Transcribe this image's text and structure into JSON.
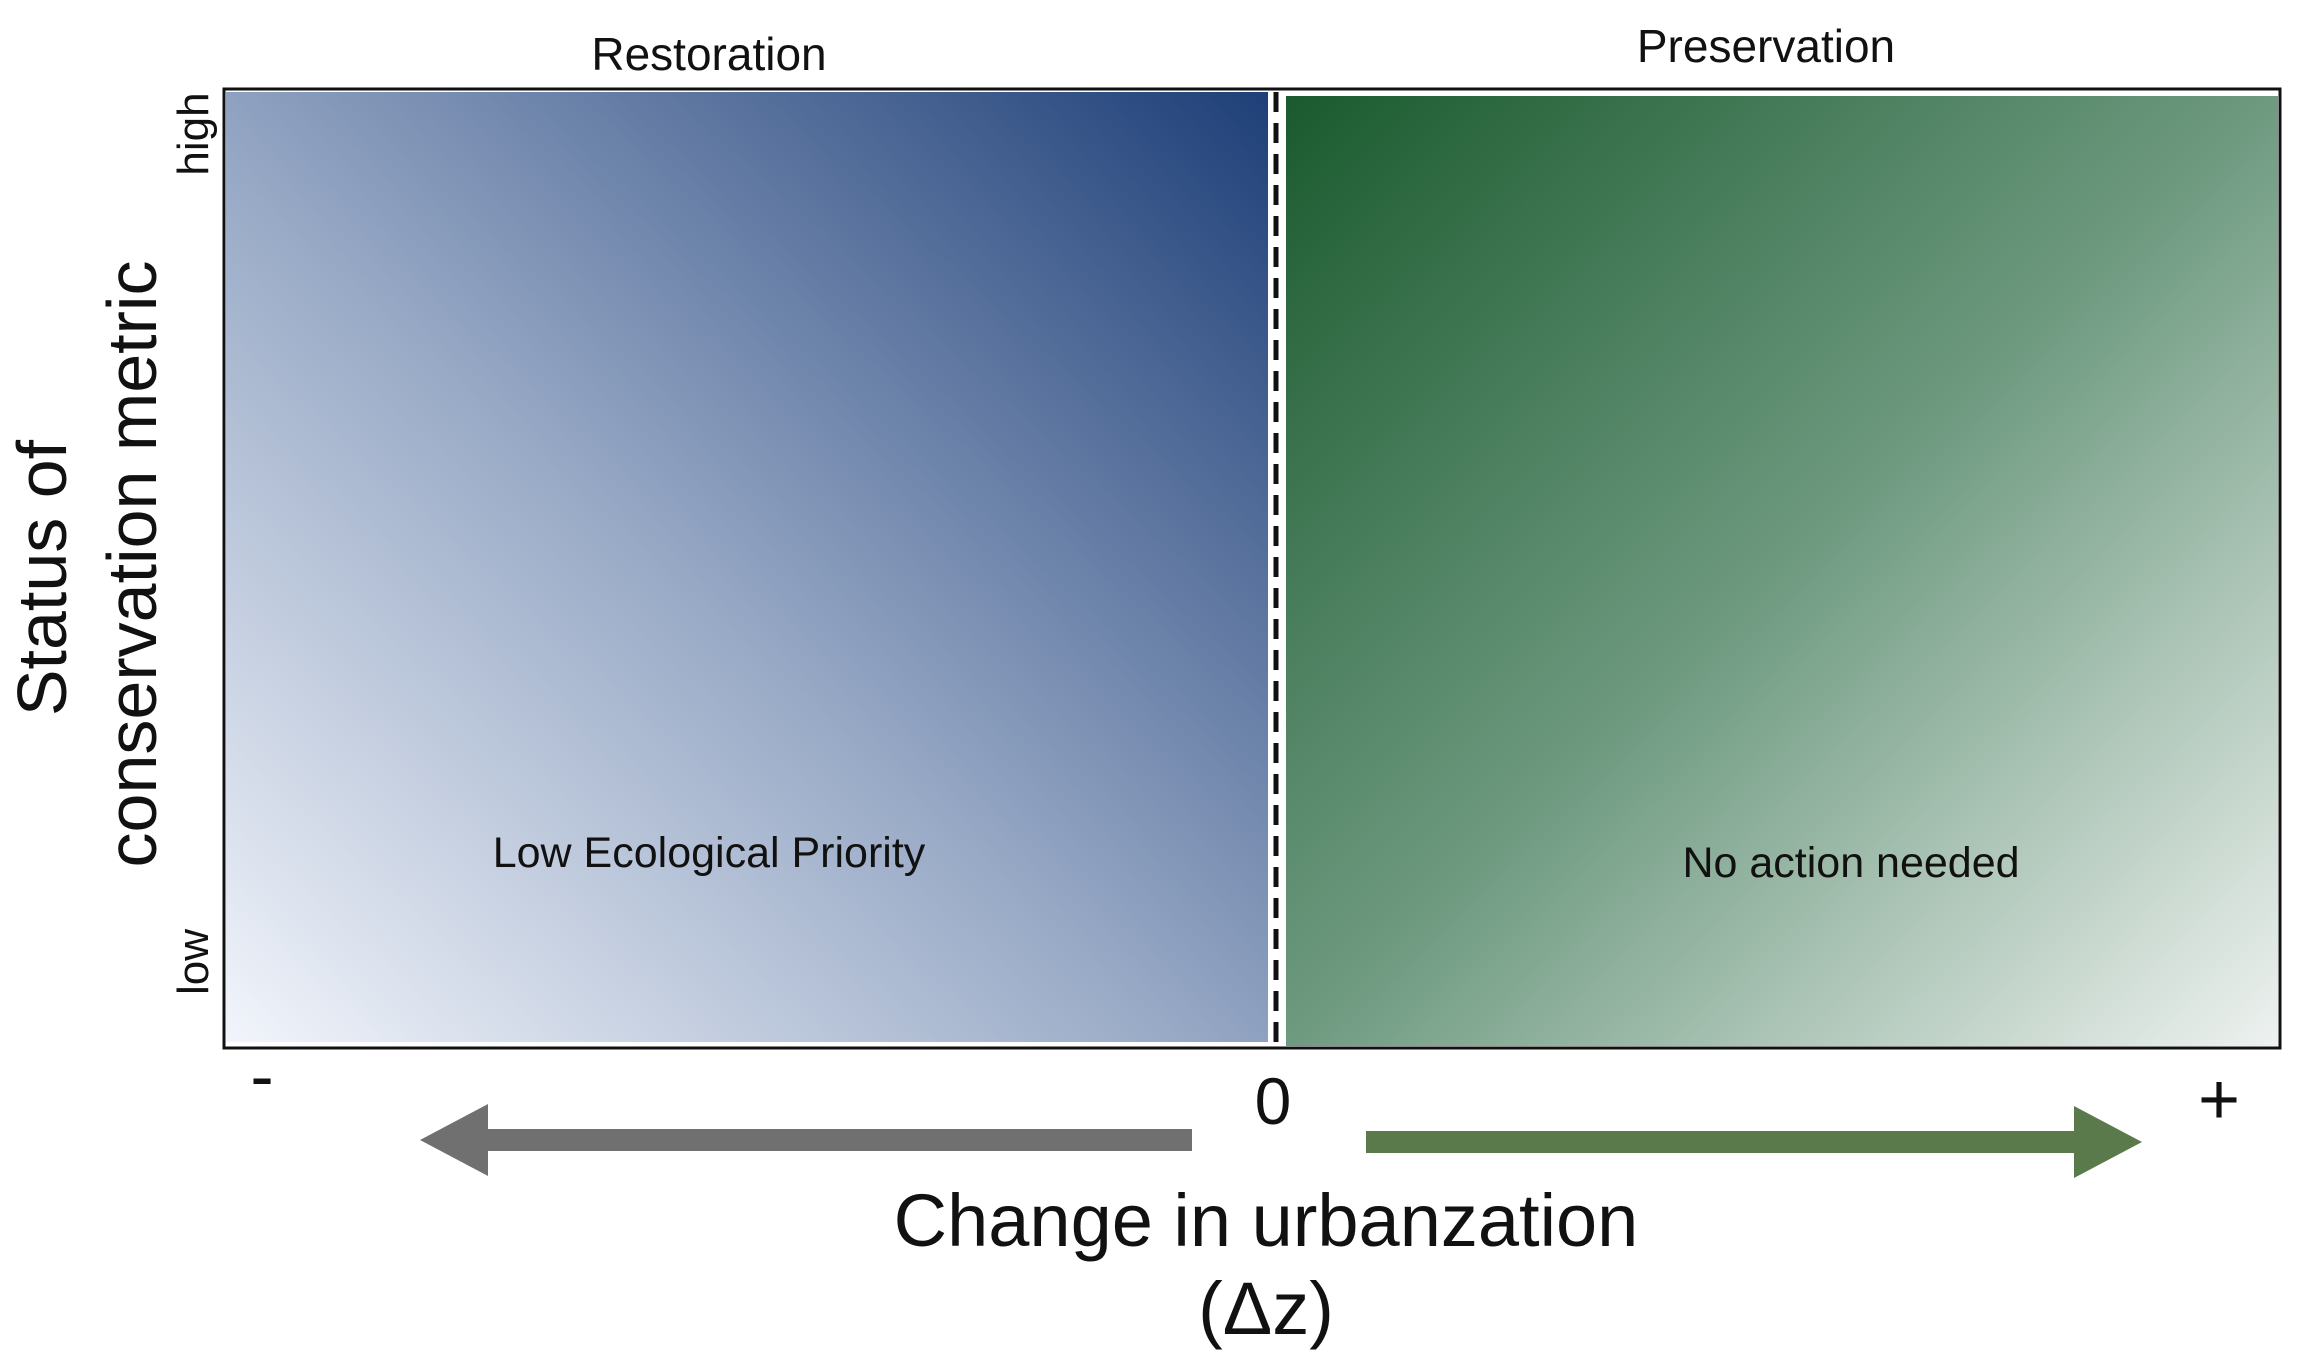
{
  "quadrants": {
    "restoration": {
      "heading": "Restoration",
      "note": "Low Ecological Priority"
    },
    "preservation": {
      "heading": "Preservation",
      "note": "No action needed"
    }
  },
  "y_axis": {
    "title_line1": "Status of",
    "title_line2": "conservation metric",
    "high": "high",
    "low": "low"
  },
  "x_axis": {
    "minus": "-",
    "zero": "0",
    "plus": "+",
    "title_line1": "Change in urbanzation",
    "title_line2": "(Δz)"
  },
  "colors": {
    "restoration_dark": "#1e3f78",
    "restoration_light": "#f2f5fb",
    "preservation_dark": "#1a5a2e",
    "preservation_light": "#eef2f0",
    "left_arrow": "#707070",
    "right_arrow": "#5a7a4c"
  }
}
